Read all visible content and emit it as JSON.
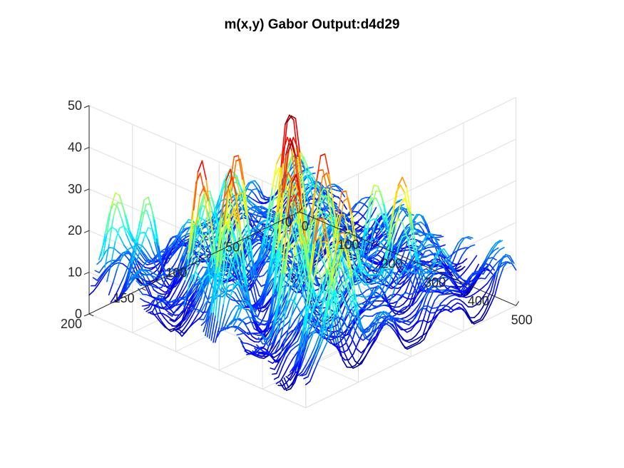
{
  "chart_data": {
    "type": "surface",
    "title": "m(x,y) Gabor Output:d4d29",
    "xlabel": "",
    "ylabel": "",
    "zlabel": "",
    "xlim": [
      0,
      500
    ],
    "ylim": [
      0,
      200
    ],
    "zlim": [
      0,
      50
    ],
    "x_ticks": [
      0,
      100,
      200,
      300,
      400,
      500
    ],
    "y_ticks": [
      0,
      50,
      100,
      150,
      200
    ],
    "z_ticks": [
      0,
      10,
      20,
      30,
      40,
      50
    ],
    "x_tick_labels": [
      "0",
      "100",
      "200",
      "300",
      "400",
      "500"
    ],
    "y_tick_labels": [
      "0",
      "50",
      "100",
      "150",
      "200"
    ],
    "z_tick_labels": [
      "0",
      "10",
      "20",
      "30",
      "40",
      "50"
    ],
    "grid": true,
    "colormap": "jet",
    "color_limits": [
      0,
      50
    ],
    "mesh_style": "column",
    "approx_range": {
      "min": 0,
      "max": 50
    },
    "peaks": [
      {
        "x": 270,
        "y": 120,
        "z": 50
      },
      {
        "x": 320,
        "y": 140,
        "z": 48
      },
      {
        "x": 220,
        "y": 150,
        "z": 46
      },
      {
        "x": 280,
        "y": 180,
        "z": 45
      },
      {
        "x": 230,
        "y": 190,
        "z": 44
      },
      {
        "x": 350,
        "y": 120,
        "z": 42
      },
      {
        "x": 400,
        "y": 170,
        "z": 42
      },
      {
        "x": 420,
        "y": 130,
        "z": 40
      },
      {
        "x": 460,
        "y": 170,
        "z": 40
      },
      {
        "x": 430,
        "y": 80,
        "z": 38
      },
      {
        "x": 490,
        "y": 160,
        "z": 34
      },
      {
        "x": 330,
        "y": 60,
        "z": 34
      },
      {
        "x": 250,
        "y": 80,
        "z": 33
      },
      {
        "x": 140,
        "y": 60,
        "z": 30
      },
      {
        "x": 200,
        "y": 100,
        "z": 30
      },
      {
        "x": 60,
        "y": 170,
        "z": 28
      },
      {
        "x": 100,
        "y": 130,
        "z": 26
      },
      {
        "x": 30,
        "y": 190,
        "z": 22
      },
      {
        "x": 50,
        "y": 90,
        "z": 24
      },
      {
        "x": 170,
        "y": 140,
        "z": 28
      }
    ],
    "colors": {
      "axis": "#262626",
      "grid": "#dedede",
      "background": "#ffffff"
    }
  }
}
